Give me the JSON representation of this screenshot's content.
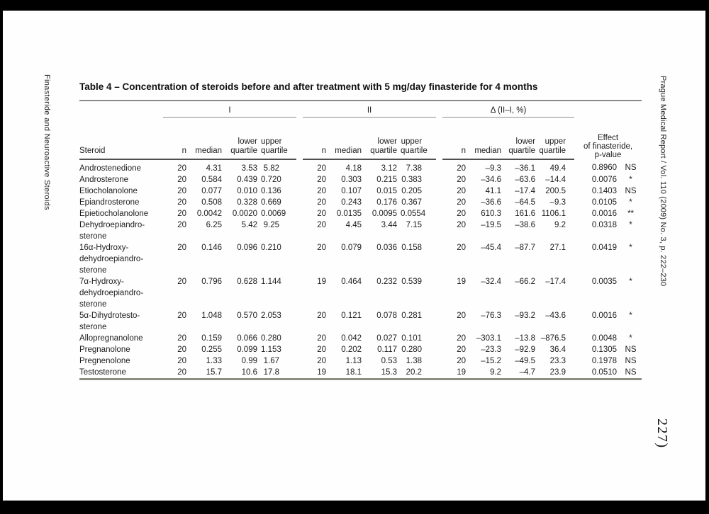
{
  "journal": {
    "left_margin_text": "Finasteride and Neuroactive Steroids",
    "right_margin_text": "Prague Medical Report / Vol. 110 (2009) No. 3, p. 222–230",
    "page_number": "227)"
  },
  "table": {
    "title": "Table 4 – Concentration of steroids before and after treatment with 5 mg/day finasteride for 4 months",
    "group_headers": [
      "I",
      "II",
      "Δ (II–I, %)"
    ],
    "effect_header_lines": [
      "Effect",
      "of finasteride,",
      "p-value"
    ],
    "subheaders": {
      "steroid": "Steroid",
      "n": "n",
      "median": "median",
      "lower_quartile_lines": [
        "lower",
        "quartile"
      ],
      "upper_quartile_lines": [
        "upper",
        "quartile"
      ]
    },
    "rows": [
      {
        "steroid_lines": [
          "Androstenedione"
        ],
        "I": {
          "n": "20",
          "median": "4.31",
          "lower_quartile": "3.53",
          "upper_quartile": "5.82"
        },
        "II": {
          "n": "20",
          "median": "4.18",
          "lower_quartile": "3.12",
          "upper_quartile": "7.38"
        },
        "delta": {
          "n": "20",
          "median": "–9.3",
          "lower_quartile": "–36.1",
          "upper_quartile": "49.4"
        },
        "p_value": "0.8960",
        "significance": "NS"
      },
      {
        "steroid_lines": [
          "Androsterone"
        ],
        "I": {
          "n": "20",
          "median": "0.584",
          "lower_quartile": "0.439",
          "upper_quartile": "0.720"
        },
        "II": {
          "n": "20",
          "median": "0.303",
          "lower_quartile": "0.215",
          "upper_quartile": "0.383"
        },
        "delta": {
          "n": "20",
          "median": "–34.6",
          "lower_quartile": "–63.6",
          "upper_quartile": "–14.4"
        },
        "p_value": "0.0076",
        "significance": "*"
      },
      {
        "steroid_lines": [
          "Etiocholanolone"
        ],
        "I": {
          "n": "20",
          "median": "0.077",
          "lower_quartile": "0.010",
          "upper_quartile": "0.136"
        },
        "II": {
          "n": "20",
          "median": "0.107",
          "lower_quartile": "0.015",
          "upper_quartile": "0.205"
        },
        "delta": {
          "n": "20",
          "median": "41.1",
          "lower_quartile": "–17.4",
          "upper_quartile": "200.5"
        },
        "p_value": "0.1403",
        "significance": "NS"
      },
      {
        "steroid_lines": [
          "Epiandrosterone"
        ],
        "I": {
          "n": "20",
          "median": "0.508",
          "lower_quartile": "0.328",
          "upper_quartile": "0.669"
        },
        "II": {
          "n": "20",
          "median": "0.243",
          "lower_quartile": "0.176",
          "upper_quartile": "0.367"
        },
        "delta": {
          "n": "20",
          "median": "–36.6",
          "lower_quartile": "–64.5",
          "upper_quartile": "–9.3"
        },
        "p_value": "0.0105",
        "significance": "*"
      },
      {
        "steroid_lines": [
          "Epietiocholanolone"
        ],
        "I": {
          "n": "20",
          "median": "0.0042",
          "lower_quartile": "0.0020",
          "upper_quartile": "0.0069"
        },
        "II": {
          "n": "20",
          "median": "0.0135",
          "lower_quartile": "0.0095",
          "upper_quartile": "0.0554"
        },
        "delta": {
          "n": "20",
          "median": "610.3",
          "lower_quartile": "161.6",
          "upper_quartile": "1106.1"
        },
        "p_value": "0.0016",
        "significance": "**"
      },
      {
        "steroid_lines": [
          "Dehydroepiandro-",
          "sterone"
        ],
        "I": {
          "n": "20",
          "median": "6.25",
          "lower_quartile": "5.42",
          "upper_quartile": "9.25"
        },
        "II": {
          "n": "20",
          "median": "4.45",
          "lower_quartile": "3.44",
          "upper_quartile": "7.15"
        },
        "delta": {
          "n": "20",
          "median": "–19.5",
          "lower_quartile": "–38.6",
          "upper_quartile": "9.2"
        },
        "p_value": "0.0318",
        "significance": "*"
      },
      {
        "steroid_lines": [
          "16α-Hydroxy-",
          "dehydroepiandro-",
          "sterone"
        ],
        "I": {
          "n": "20",
          "median": "0.146",
          "lower_quartile": "0.096",
          "upper_quartile": "0.210"
        },
        "II": {
          "n": "20",
          "median": "0.079",
          "lower_quartile": "0.036",
          "upper_quartile": "0.158"
        },
        "delta": {
          "n": "20",
          "median": "–45.4",
          "lower_quartile": "–87.7",
          "upper_quartile": "27.1"
        },
        "p_value": "0.0419",
        "significance": "*"
      },
      {
        "steroid_lines": [
          "7α-Hydroxy-",
          "dehydroepiandro-",
          "sterone"
        ],
        "I": {
          "n": "20",
          "median": "0.796",
          "lower_quartile": "0.628",
          "upper_quartile": "1.144"
        },
        "II": {
          "n": "19",
          "median": "0.464",
          "lower_quartile": "0.232",
          "upper_quartile": "0.539"
        },
        "delta": {
          "n": "19",
          "median": "–32.4",
          "lower_quartile": "–66.2",
          "upper_quartile": "–17.4"
        },
        "p_value": "0.0035",
        "significance": "*"
      },
      {
        "steroid_lines": [
          "5α-Dihydrotesto-",
          "sterone"
        ],
        "I": {
          "n": "20",
          "median": "1.048",
          "lower_quartile": "0.570",
          "upper_quartile": "2.053"
        },
        "II": {
          "n": "20",
          "median": "0.121",
          "lower_quartile": "0.078",
          "upper_quartile": "0.281"
        },
        "delta": {
          "n": "20",
          "median": "–76.3",
          "lower_quartile": "–93.2",
          "upper_quartile": "–43.6"
        },
        "p_value": "0.0016",
        "significance": "*"
      },
      {
        "steroid_lines": [
          "Allopregnanolone"
        ],
        "I": {
          "n": "20",
          "median": "0.159",
          "lower_quartile": "0.066",
          "upper_quartile": "0.280"
        },
        "II": {
          "n": "20",
          "median": "0.042",
          "lower_quartile": "0.027",
          "upper_quartile": "0.101"
        },
        "delta": {
          "n": "20",
          "median": "–303.1",
          "lower_quartile": "–13.8",
          "upper_quartile": "–876.5"
        },
        "p_value": "0.0048",
        "significance": "*"
      },
      {
        "steroid_lines": [
          "Pregnanolone"
        ],
        "I": {
          "n": "20",
          "median": "0.255",
          "lower_quartile": "0.099",
          "upper_quartile": "1.153"
        },
        "II": {
          "n": "20",
          "median": "0.202",
          "lower_quartile": "0.117",
          "upper_quartile": "0.280"
        },
        "delta": {
          "n": "20",
          "median": "–23.3",
          "lower_quartile": "–92.9",
          "upper_quartile": "36.4"
        },
        "p_value": "0.1305",
        "significance": "NS"
      },
      {
        "steroid_lines": [
          "Pregnenolone"
        ],
        "I": {
          "n": "20",
          "median": "1.33",
          "lower_quartile": "0.99",
          "upper_quartile": "1.67"
        },
        "II": {
          "n": "20",
          "median": "1.13",
          "lower_quartile": "0.53",
          "upper_quartile": "1.38"
        },
        "delta": {
          "n": "20",
          "median": "–15.2",
          "lower_quartile": "–49.5",
          "upper_quartile": "23.3"
        },
        "p_value": "0.1978",
        "significance": "NS"
      },
      {
        "steroid_lines": [
          "Testosterone"
        ],
        "I": {
          "n": "20",
          "median": "15.7",
          "lower_quartile": "10.6",
          "upper_quartile": "17.8"
        },
        "II": {
          "n": "19",
          "median": "18.1",
          "lower_quartile": "15.3",
          "upper_quartile": "20.2"
        },
        "delta": {
          "n": "19",
          "median": "9.2",
          "lower_quartile": "–4.7",
          "upper_quartile": "23.9"
        },
        "p_value": "0.0510",
        "significance": "NS"
      }
    ]
  }
}
